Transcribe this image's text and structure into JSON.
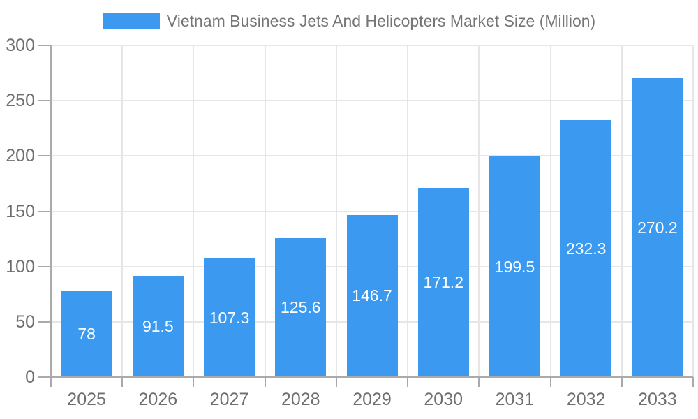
{
  "chart_data": {
    "type": "bar",
    "title": "Vietnam Business Jets And Helicopters Market Size (Million)",
    "categories": [
      "2025",
      "2026",
      "2027",
      "2028",
      "2029",
      "2030",
      "2031",
      "2032",
      "2033"
    ],
    "values": [
      78,
      91.5,
      107.3,
      125.6,
      146.7,
      171.2,
      199.5,
      232.3,
      270.2
    ],
    "value_labels": [
      "78",
      "91.5",
      "107.3",
      "125.6",
      "146.7",
      "171.2",
      "199.5",
      "232.3",
      "270.2"
    ],
    "xlabel": "",
    "ylabel": "",
    "ylim": [
      0,
      300
    ],
    "y_ticks": [
      0,
      50,
      100,
      150,
      200,
      250,
      300
    ],
    "grid": "both",
    "legend_position": "top",
    "colors": {
      "bar": "#3b99f0",
      "bar_label": "#ffffff",
      "axis_label": "#6f6f6f",
      "legend_text": "#757575",
      "grid_line": "#e6e6e6",
      "axis_line": "#aaaaaa",
      "background": "#ffffff"
    }
  }
}
